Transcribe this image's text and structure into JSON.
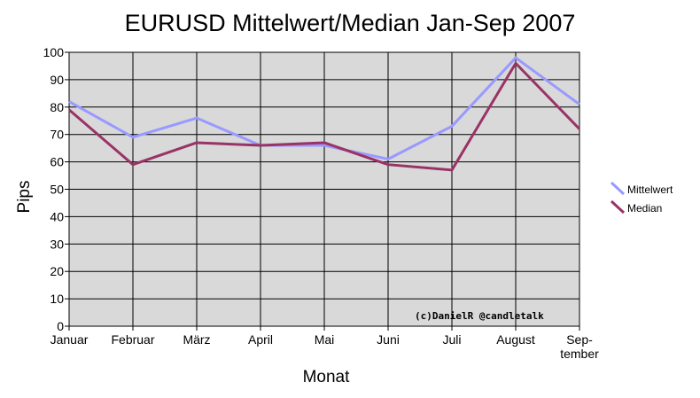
{
  "chart_data": {
    "type": "line",
    "title": "EURUSD Mittelwert/Median Jan-Sep 2007",
    "xlabel": "Monat",
    "ylabel": "Pips",
    "categories": [
      "Januar",
      "Februar",
      "März",
      "April",
      "Mai",
      "Juni",
      "Juli",
      "August",
      "Sep-\ntember"
    ],
    "yticks": [
      "0",
      "10",
      "20",
      "30",
      "40",
      "50",
      "60",
      "70",
      "80",
      "90",
      "100"
    ],
    "ylim": [
      0,
      100
    ],
    "grid": true,
    "legend_position": "right",
    "series": [
      {
        "name": "Mittelwert",
        "color": "#9999ff",
        "values": [
          82,
          69,
          76,
          66,
          66,
          61,
          73,
          98,
          81
        ]
      },
      {
        "name": "Median",
        "color": "#993366",
        "values": [
          79,
          59,
          67,
          66,
          67,
          59,
          57,
          96,
          72
        ]
      }
    ],
    "annotation": "(c)DanielR @candletalk",
    "plot_background": "#d9d9d9"
  }
}
